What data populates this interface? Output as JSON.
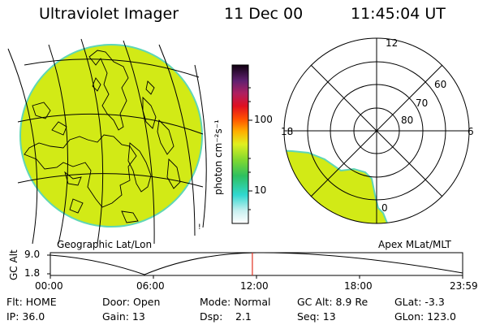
{
  "header": {
    "title": "Ultraviolet Imager",
    "date": "11 Dec 00",
    "time": "11:45:04 UT"
  },
  "colorbar": {
    "unit": "photon cm⁻²s⁻¹",
    "ticks": [
      "100",
      "10"
    ]
  },
  "geo_panel": {
    "label": "Geographic Lat/Lon"
  },
  "polar_panel": {
    "label": "Apex MLat/MLT",
    "lat_labels": [
      "60",
      "70",
      "80"
    ],
    "mlt_labels": [
      "12",
      "18",
      "6",
      "0"
    ]
  },
  "gc_plot": {
    "ylabel": "GC Alt",
    "ymax": "9.0",
    "ymin": "1.8",
    "x_ticks": [
      "00:00",
      "06:00",
      "12:00",
      "18:00",
      "23:59"
    ],
    "current_fraction": 0.49
  },
  "footer": {
    "row1": {
      "flt": "Flt: HOME",
      "door": "Door: Open",
      "mode": "Mode: Normal",
      "gcalt": "GC Alt: 8.9 Re",
      "glat": "GLat:  -3.3"
    },
    "row2": {
      "ip": "IP: 36.0",
      "gain": "Gain: 13",
      "dsp_label": "Dsp:",
      "dsp_value": "2.1",
      "seq": "Seq: 13",
      "glon": "GLon: 123.0"
    }
  },
  "colors": {
    "disk": "#d2ea16",
    "rim": "#5fd6b6"
  }
}
